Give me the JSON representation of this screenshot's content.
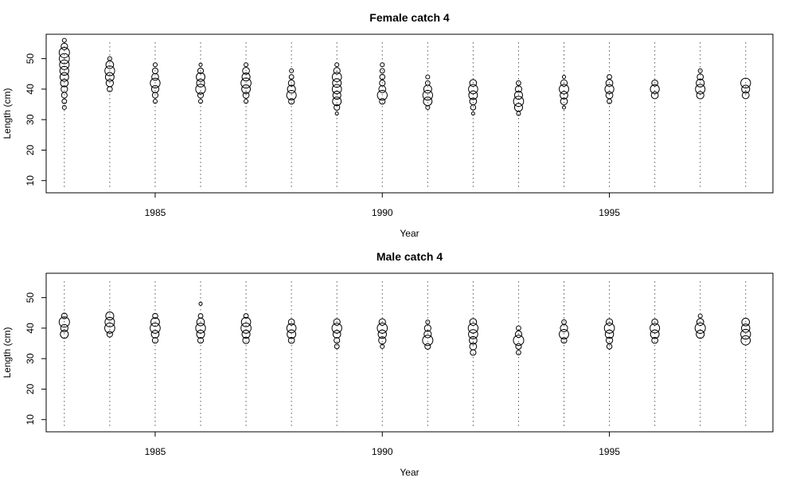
{
  "chart_data": [
    {
      "type": "scatter",
      "subtype": "bubble",
      "title": "Female catch 4",
      "xlabel": "Year",
      "ylabel": "Length (cm)",
      "xlim": [
        1982.6,
        1998.6
      ],
      "ylim": [
        6,
        58
      ],
      "xticks": [
        1985,
        1990,
        1995
      ],
      "yticks": [
        10,
        20,
        30,
        40,
        50
      ],
      "grid": false,
      "vertical_guides": "dotted lines at each year from 8 to 56",
      "years": [
        1983,
        1984,
        1985,
        1986,
        1987,
        1988,
        1989,
        1990,
        1991,
        1992,
        1993,
        1994,
        1995,
        1996,
        1997,
        1998
      ],
      "size_scale": 6.5,
      "points": [
        [
          1983,
          34,
          0.15
        ],
        [
          1983,
          36,
          0.2
        ],
        [
          1983,
          38,
          0.3
        ],
        [
          1983,
          40,
          0.4
        ],
        [
          1983,
          42,
          0.55
        ],
        [
          1983,
          44,
          0.7
        ],
        [
          1983,
          46,
          0.75
        ],
        [
          1983,
          48,
          0.85
        ],
        [
          1983,
          50,
          0.95
        ],
        [
          1983,
          52,
          1.0
        ],
        [
          1983,
          54,
          0.4
        ],
        [
          1983,
          56,
          0.15
        ],
        [
          1984,
          40,
          0.25
        ],
        [
          1984,
          42,
          0.5
        ],
        [
          1984,
          44,
          0.7
        ],
        [
          1984,
          46,
          0.9
        ],
        [
          1984,
          48,
          0.55
        ],
        [
          1984,
          50,
          0.15
        ],
        [
          1985,
          36,
          0.15
        ],
        [
          1985,
          38,
          0.3
        ],
        [
          1985,
          40,
          0.5
        ],
        [
          1985,
          42,
          0.9
        ],
        [
          1985,
          44,
          0.45
        ],
        [
          1985,
          46,
          0.3
        ],
        [
          1985,
          48,
          0.15
        ],
        [
          1986,
          36,
          0.15
        ],
        [
          1986,
          38,
          0.3
        ],
        [
          1986,
          40,
          0.9
        ],
        [
          1986,
          42,
          0.6
        ],
        [
          1986,
          44,
          0.7
        ],
        [
          1986,
          46,
          0.3
        ],
        [
          1986,
          48,
          0.1
        ],
        [
          1987,
          36,
          0.15
        ],
        [
          1987,
          38,
          0.35
        ],
        [
          1987,
          40,
          0.7
        ],
        [
          1987,
          42,
          0.95
        ],
        [
          1987,
          44,
          0.6
        ],
        [
          1987,
          46,
          0.45
        ],
        [
          1987,
          48,
          0.15
        ],
        [
          1988,
          36,
          0.3
        ],
        [
          1988,
          38,
          0.85
        ],
        [
          1988,
          40,
          0.6
        ],
        [
          1988,
          42,
          0.35
        ],
        [
          1988,
          44,
          0.2
        ],
        [
          1988,
          46,
          0.15
        ],
        [
          1989,
          32,
          0.1
        ],
        [
          1989,
          34,
          0.3
        ],
        [
          1989,
          36,
          0.7
        ],
        [
          1989,
          38,
          0.6
        ],
        [
          1989,
          40,
          0.8
        ],
        [
          1989,
          42,
          0.7
        ],
        [
          1989,
          44,
          0.8
        ],
        [
          1989,
          46,
          0.4
        ],
        [
          1989,
          48,
          0.15
        ],
        [
          1990,
          36,
          0.3
        ],
        [
          1990,
          38,
          0.9
        ],
        [
          1990,
          40,
          0.45
        ],
        [
          1990,
          42,
          0.3
        ],
        [
          1990,
          44,
          0.25
        ],
        [
          1990,
          46,
          0.2
        ],
        [
          1990,
          48,
          0.15
        ],
        [
          1991,
          34,
          0.15
        ],
        [
          1991,
          36,
          0.7
        ],
        [
          1991,
          38,
          0.9
        ],
        [
          1991,
          40,
          0.6
        ],
        [
          1991,
          42,
          0.2
        ],
        [
          1991,
          44,
          0.15
        ],
        [
          1992,
          32,
          0.1
        ],
        [
          1992,
          34,
          0.25
        ],
        [
          1992,
          36,
          0.45
        ],
        [
          1992,
          38,
          0.7
        ],
        [
          1992,
          40,
          0.8
        ],
        [
          1992,
          42,
          0.45
        ],
        [
          1993,
          32,
          0.15
        ],
        [
          1993,
          34,
          0.6
        ],
        [
          1993,
          36,
          0.95
        ],
        [
          1993,
          38,
          0.6
        ],
        [
          1993,
          40,
          0.4
        ],
        [
          1993,
          42,
          0.2
        ],
        [
          1994,
          34,
          0.1
        ],
        [
          1994,
          36,
          0.45
        ],
        [
          1994,
          38,
          0.55
        ],
        [
          1994,
          40,
          0.85
        ],
        [
          1994,
          42,
          0.4
        ],
        [
          1994,
          44,
          0.1
        ],
        [
          1995,
          36,
          0.2
        ],
        [
          1995,
          38,
          0.45
        ],
        [
          1995,
          40,
          0.75
        ],
        [
          1995,
          42,
          0.45
        ],
        [
          1995,
          44,
          0.2
        ],
        [
          1996,
          38,
          0.45
        ],
        [
          1996,
          40,
          0.75
        ],
        [
          1996,
          42,
          0.35
        ],
        [
          1997,
          38,
          0.5
        ],
        [
          1997,
          40,
          0.85
        ],
        [
          1997,
          42,
          0.6
        ],
        [
          1997,
          44,
          0.35
        ],
        [
          1997,
          46,
          0.15
        ],
        [
          1998,
          38,
          0.45
        ],
        [
          1998,
          40,
          0.6
        ],
        [
          1998,
          42,
          0.9
        ]
      ]
    },
    {
      "type": "scatter",
      "subtype": "bubble",
      "title": "Male catch 4",
      "xlabel": "Year",
      "ylabel": "Length (cm)",
      "xlim": [
        1982.6,
        1998.6
      ],
      "ylim": [
        6,
        58
      ],
      "xticks": [
        1985,
        1990,
        1995
      ],
      "yticks": [
        10,
        20,
        30,
        40,
        50
      ],
      "grid": false,
      "vertical_guides": "dotted lines at each year from 8 to 56",
      "years": [
        1983,
        1984,
        1985,
        1986,
        1987,
        1988,
        1989,
        1990,
        1991,
        1992,
        1993,
        1994,
        1995,
        1996,
        1997,
        1998
      ],
      "size_scale": 6.5,
      "points": [
        [
          1983,
          38,
          0.6
        ],
        [
          1983,
          40,
          0.5
        ],
        [
          1983,
          42,
          1.0
        ],
        [
          1983,
          44,
          0.3
        ],
        [
          1984,
          38,
          0.3
        ],
        [
          1984,
          40,
          0.95
        ],
        [
          1984,
          42,
          0.85
        ],
        [
          1984,
          44,
          0.6
        ],
        [
          1985,
          36,
          0.3
        ],
        [
          1985,
          38,
          0.55
        ],
        [
          1985,
          40,
          0.95
        ],
        [
          1985,
          42,
          0.7
        ],
        [
          1985,
          44,
          0.25
        ],
        [
          1986,
          36,
          0.3
        ],
        [
          1986,
          38,
          0.6
        ],
        [
          1986,
          40,
          0.9
        ],
        [
          1986,
          42,
          0.55
        ],
        [
          1986,
          44,
          0.2
        ],
        [
          1986,
          48,
          0.1
        ],
        [
          1987,
          36,
          0.4
        ],
        [
          1987,
          38,
          0.6
        ],
        [
          1987,
          40,
          0.95
        ],
        [
          1987,
          42,
          0.8
        ],
        [
          1987,
          44,
          0.2
        ],
        [
          1988,
          36,
          0.35
        ],
        [
          1988,
          38,
          0.7
        ],
        [
          1988,
          40,
          0.8
        ],
        [
          1988,
          42,
          0.35
        ],
        [
          1989,
          34,
          0.2
        ],
        [
          1989,
          36,
          0.3
        ],
        [
          1989,
          38,
          0.55
        ],
        [
          1989,
          40,
          0.9
        ],
        [
          1989,
          42,
          0.4
        ],
        [
          1990,
          34,
          0.15
        ],
        [
          1990,
          36,
          0.5
        ],
        [
          1990,
          38,
          0.65
        ],
        [
          1990,
          40,
          0.95
        ],
        [
          1990,
          42,
          0.4
        ],
        [
          1991,
          34,
          0.3
        ],
        [
          1991,
          36,
          1.0
        ],
        [
          1991,
          38,
          0.5
        ],
        [
          1991,
          40,
          0.4
        ],
        [
          1991,
          42,
          0.15
        ],
        [
          1992,
          32,
          0.3
        ],
        [
          1992,
          34,
          0.45
        ],
        [
          1992,
          36,
          0.55
        ],
        [
          1992,
          38,
          0.8
        ],
        [
          1992,
          40,
          0.9
        ],
        [
          1992,
          42,
          0.45
        ],
        [
          1993,
          32,
          0.2
        ],
        [
          1993,
          34,
          0.3
        ],
        [
          1993,
          36,
          1.0
        ],
        [
          1993,
          38,
          0.4
        ],
        [
          1993,
          40,
          0.2
        ],
        [
          1994,
          36,
          0.3
        ],
        [
          1994,
          38,
          0.85
        ],
        [
          1994,
          40,
          0.5
        ],
        [
          1994,
          42,
          0.2
        ],
        [
          1995,
          34,
          0.25
        ],
        [
          1995,
          36,
          0.4
        ],
        [
          1995,
          38,
          0.65
        ],
        [
          1995,
          40,
          0.95
        ],
        [
          1995,
          42,
          0.4
        ],
        [
          1996,
          36,
          0.35
        ],
        [
          1996,
          38,
          0.7
        ],
        [
          1996,
          40,
          0.85
        ],
        [
          1996,
          42,
          0.35
        ],
        [
          1997,
          38,
          0.6
        ],
        [
          1997,
          40,
          1.0
        ],
        [
          1997,
          42,
          0.45
        ],
        [
          1997,
          44,
          0.15
        ],
        [
          1998,
          36,
          0.8
        ],
        [
          1998,
          38,
          0.9
        ],
        [
          1998,
          40,
          0.65
        ],
        [
          1998,
          42,
          0.55
        ]
      ]
    }
  ]
}
